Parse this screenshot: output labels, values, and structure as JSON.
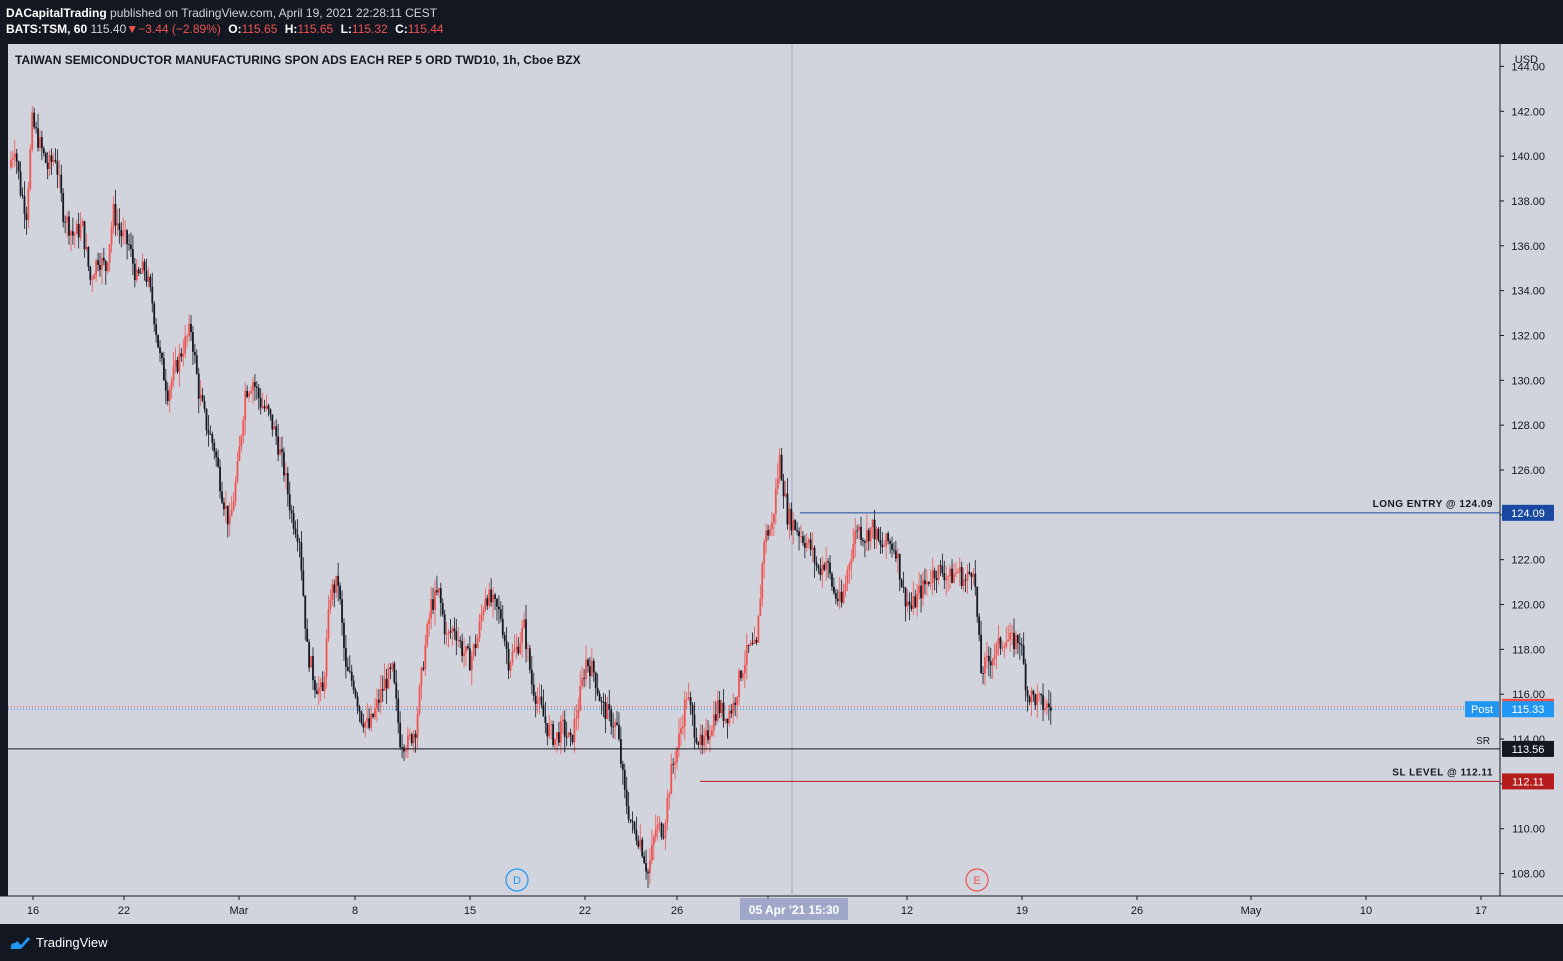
{
  "header": {
    "author": "DACapitalTrading",
    "published": "published on TradingView.com, April 19, 2021 22:28:11 CEST",
    "symbol": "BATS:TSM, 60",
    "last": "115.40",
    "change": "−3.44 (−2.89%)",
    "open_label": "O:",
    "open": "115.65",
    "high_label": "H:",
    "high": "115.65",
    "low_label": "L:",
    "low": "115.32",
    "close_label": "C:",
    "close": "115.44"
  },
  "footer": {
    "brand": "TradingView"
  },
  "colors": {
    "up": "#ef5350",
    "down": "#131722",
    "background": "#d1d4dc",
    "panel": "#131722"
  },
  "chart_data": {
    "type": "candlestick",
    "title": "TAIWAN SEMICONDUCTOR MANUFACTURING SPON ADS EACH REP 5 ORD TWD10, 1h, Cboe BZX",
    "currency": "USD",
    "ylim": [
      107,
      145
    ],
    "y_ticks": [
      108,
      110,
      112,
      114,
      116,
      118,
      120,
      122,
      124,
      126,
      128,
      130,
      132,
      134,
      136,
      138,
      140,
      142,
      144
    ],
    "x_ticks": [
      "16",
      "22",
      "Mar",
      "8",
      "15",
      "22",
      "26",
      "Apr",
      "12",
      "19",
      "26",
      "May",
      "10",
      "17"
    ],
    "crosshair_label": "05 Apr '21   15:30",
    "levels": [
      {
        "name": "LONG ENTRY @ 124.09",
        "value": 124.09,
        "color": "#1848a0",
        "badge": "124.09"
      },
      {
        "name": "SL LEVEL @ 112.11",
        "value": 112.11,
        "color": "#b71c1c",
        "badge": "112.11"
      },
      {
        "name": "SR",
        "value": 113.56,
        "color": "#131722",
        "badge": "113.56"
      }
    ],
    "price_badges": [
      {
        "label": "",
        "value": 115.44,
        "text": "115.44",
        "color": "#ef5350"
      },
      {
        "label": "Post",
        "value": 115.33,
        "text": "115.33",
        "color": "#2196f3"
      }
    ],
    "event_markers": [
      {
        "label": "D",
        "color": "#2196f3",
        "date": "Mar 17"
      },
      {
        "label": "E",
        "color": "#ef5350",
        "date": "Apr 15"
      }
    ],
    "price_path": [
      [
        0,
        139.5
      ],
      [
        3,
        140.5
      ],
      [
        6,
        138.5
      ],
      [
        9,
        137.5
      ],
      [
        12,
        141.5
      ],
      [
        16,
        140.5
      ],
      [
        20,
        139.5
      ],
      [
        24,
        140.0
      ],
      [
        28,
        137.5
      ],
      [
        33,
        136.5
      ],
      [
        38,
        136.8
      ],
      [
        42,
        134.5
      ],
      [
        46,
        135.5
      ],
      [
        50,
        135.0
      ],
      [
        54,
        137.5
      ],
      [
        58,
        136.5
      ],
      [
        62,
        136.0
      ],
      [
        66,
        134.5
      ],
      [
        70,
        135.0
      ],
      [
        74,
        133.5
      ],
      [
        78,
        131.0
      ],
      [
        82,
        129.5
      ],
      [
        86,
        130.5
      ],
      [
        90,
        131.5
      ],
      [
        94,
        132.3
      ],
      [
        98,
        129.5
      ],
      [
        102,
        128.0
      ],
      [
        106,
        127.0
      ],
      [
        110,
        125.0
      ],
      [
        114,
        123.5
      ],
      [
        118,
        126.0
      ],
      [
        122,
        129.5
      ],
      [
        126,
        130.0
      ],
      [
        130,
        129.0
      ],
      [
        134,
        128.5
      ],
      [
        138,
        127.5
      ],
      [
        142,
        126.0
      ],
      [
        146,
        124.0
      ],
      [
        150,
        123.0
      ],
      [
        154,
        118.0
      ],
      [
        158,
        116.5
      ],
      [
        162,
        116.0
      ],
      [
        166,
        120.5
      ],
      [
        170,
        121.0
      ],
      [
        174,
        117.0
      ],
      [
        178,
        116.5
      ],
      [
        182,
        115.0
      ],
      [
        186,
        114.5
      ],
      [
        190,
        115.5
      ],
      [
        194,
        116.5
      ],
      [
        198,
        117.0
      ],
      [
        202,
        114.0
      ],
      [
        206,
        113.8
      ],
      [
        210,
        114.5
      ],
      [
        214,
        117.5
      ],
      [
        218,
        120.0
      ],
      [
        222,
        120.5
      ],
      [
        226,
        118.5
      ],
      [
        230,
        119.0
      ],
      [
        234,
        118.0
      ],
      [
        238,
        117.5
      ],
      [
        242,
        118.5
      ],
      [
        246,
        120.5
      ],
      [
        250,
        120.0
      ],
      [
        254,
        119.5
      ],
      [
        258,
        117.5
      ],
      [
        262,
        118.0
      ],
      [
        266,
        119.0
      ],
      [
        270,
        116.5
      ],
      [
        274,
        115.5
      ],
      [
        278,
        114.5
      ],
      [
        282,
        114.0
      ],
      [
        286,
        114.5
      ],
      [
        290,
        113.8
      ],
      [
        294,
        115.5
      ],
      [
        298,
        117.5
      ],
      [
        302,
        117.0
      ],
      [
        306,
        115.5
      ],
      [
        310,
        115.0
      ],
      [
        314,
        114.5
      ],
      [
        318,
        111.5
      ],
      [
        322,
        110.0
      ],
      [
        326,
        109.5
      ],
      [
        330,
        108.0
      ],
      [
        334,
        110.0
      ],
      [
        338,
        110.0
      ],
      [
        342,
        112.5
      ],
      [
        346,
        114.0
      ],
      [
        350,
        116.0
      ],
      [
        354,
        114.5
      ],
      [
        358,
        113.5
      ],
      [
        362,
        114.5
      ],
      [
        366,
        115.5
      ],
      [
        370,
        115.0
      ],
      [
        374,
        115.5
      ],
      [
        378,
        117.0
      ],
      [
        382,
        118.0
      ],
      [
        386,
        118.0
      ],
      [
        390,
        123.0
      ],
      [
        394,
        123.5
      ],
      [
        398,
        126.5
      ],
      [
        402,
        124.0
      ],
      [
        406,
        123.5
      ],
      [
        410,
        123.0
      ],
      [
        414,
        122.5
      ],
      [
        418,
        121.5
      ],
      [
        422,
        122.0
      ],
      [
        426,
        120.5
      ],
      [
        430,
        120.0
      ],
      [
        434,
        122.0
      ],
      [
        438,
        123.5
      ],
      [
        442,
        123.0
      ],
      [
        446,
        123.5
      ],
      [
        450,
        122.5
      ],
      [
        454,
        122.8
      ],
      [
        458,
        122.5
      ],
      [
        462,
        120.5
      ],
      [
        466,
        119.8
      ],
      [
        470,
        120.5
      ],
      [
        474,
        121.0
      ],
      [
        478,
        121.5
      ],
      [
        482,
        121.5
      ],
      [
        486,
        121.2
      ],
      [
        490,
        121.5
      ],
      [
        494,
        121.0
      ],
      [
        498,
        121.8
      ],
      [
        502,
        117.0
      ],
      [
        506,
        117.5
      ],
      [
        510,
        118.0
      ],
      [
        514,
        118.5
      ],
      [
        518,
        118.3
      ],
      [
        522,
        118.5
      ],
      [
        526,
        116.0
      ],
      [
        530,
        115.8
      ],
      [
        534,
        115.5
      ],
      [
        538,
        115.4
      ]
    ]
  }
}
